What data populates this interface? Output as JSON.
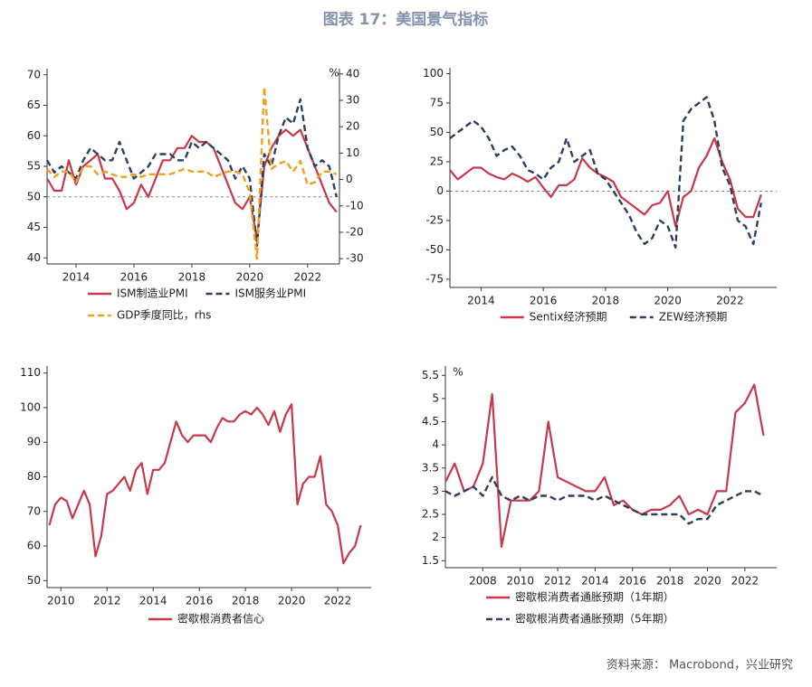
{
  "header": {
    "title": "图表 17：美国景气指标"
  },
  "source": "资料来源： Macrobond，兴业研究",
  "chart_data": [
    {
      "type": "line",
      "xlim": [
        2013,
        2023.1
      ],
      "xticks": [
        2014,
        2016,
        2018,
        2020,
        2022
      ],
      "ylim": [
        39,
        71
      ],
      "yticks": [
        40,
        45,
        50,
        55,
        60,
        65,
        70
      ],
      "y2lim": [
        -32,
        42
      ],
      "y2ticks": [
        -30,
        -20,
        -10,
        0,
        10,
        20,
        30,
        40
      ],
      "y2_unit": "%",
      "refline": 50,
      "x": [
        2013,
        2013.25,
        2013.5,
        2013.75,
        2014,
        2014.25,
        2014.5,
        2014.75,
        2015,
        2015.25,
        2015.5,
        2015.75,
        2016,
        2016.25,
        2016.5,
        2016.75,
        2017,
        2017.25,
        2017.5,
        2017.75,
        2018,
        2018.25,
        2018.5,
        2018.75,
        2019,
        2019.25,
        2019.5,
        2019.75,
        2020,
        2020.25,
        2020.5,
        2020.75,
        2021,
        2021.25,
        2021.5,
        2021.75,
        2022,
        2022.25,
        2022.5,
        2022.75,
        2023
      ],
      "series": [
        {
          "name": "ISM制造业PMI",
          "color": "#c8374a",
          "dash": false,
          "values": [
            53,
            51,
            51,
            56,
            52,
            55,
            56,
            57,
            53,
            53,
            51,
            48,
            49,
            52,
            50,
            53,
            56,
            56,
            58,
            58,
            60,
            59,
            59,
            58,
            55,
            52,
            49,
            48,
            50,
            43,
            55,
            58,
            60,
            61,
            60,
            61,
            58,
            55,
            52,
            49,
            47.5
          ]
        },
        {
          "name": "ISM服务业PMI",
          "color": "#2e3f5c",
          "dash": true,
          "values": [
            56,
            54,
            55,
            54,
            53,
            56,
            58,
            57,
            56,
            56,
            59,
            56,
            53,
            54,
            55,
            57,
            57,
            57,
            56,
            56,
            59,
            58,
            59,
            58,
            57,
            56,
            53,
            55,
            53,
            42,
            57,
            55,
            60,
            63,
            62,
            66,
            58,
            55,
            56,
            55,
            50
          ]
        },
        {
          "name": "GDP季度同比，rhs",
          "color": "#f0a020",
          "dash": true,
          "axis": "y2",
          "values": [
            4,
            1,
            3,
            3,
            -1,
            5,
            5,
            2,
            3,
            2,
            1,
            1,
            2,
            1,
            2,
            2,
            2,
            2,
            3,
            4,
            3,
            3,
            3,
            1,
            2,
            3,
            3,
            2,
            -5,
            -30,
            35,
            4,
            6,
            7,
            3,
            7,
            -2,
            -1,
            3,
            3,
            2
          ]
        }
      ]
    },
    {
      "type": "line",
      "xlim": [
        2013,
        2023.5
      ],
      "xticks": [
        2014,
        2016,
        2018,
        2020,
        2022
      ],
      "ylim": [
        -82,
        105
      ],
      "yticks": [
        -75,
        -50,
        -25,
        0,
        25,
        50,
        75,
        100
      ],
      "refline": 0,
      "x": [
        2013,
        2013.25,
        2013.5,
        2013.75,
        2014,
        2014.25,
        2014.5,
        2014.75,
        2015,
        2015.25,
        2015.5,
        2015.75,
        2016,
        2016.25,
        2016.5,
        2016.75,
        2017,
        2017.25,
        2017.5,
        2017.75,
        2018,
        2018.25,
        2018.5,
        2018.75,
        2019,
        2019.25,
        2019.5,
        2019.75,
        2020,
        2020.25,
        2020.5,
        2020.75,
        2021,
        2021.25,
        2021.5,
        2021.75,
        2022,
        2022.25,
        2022.5,
        2022.75,
        2023
      ],
      "series": [
        {
          "name": "Sentix经济预期",
          "color": "#c8374a",
          "dash": false,
          "values": [
            18,
            10,
            15,
            20,
            20,
            15,
            12,
            10,
            15,
            12,
            8,
            12,
            3,
            -5,
            5,
            5,
            10,
            28,
            20,
            15,
            12,
            8,
            -5,
            -10,
            -15,
            -20,
            -12,
            -10,
            0,
            -30,
            -5,
            0,
            20,
            30,
            45,
            25,
            10,
            -15,
            -22,
            -22,
            -3
          ]
        },
        {
          "name": "ZEW经济预期",
          "color": "#2e3f5c",
          "dash": true,
          "values": [
            45,
            50,
            55,
            60,
            55,
            45,
            30,
            35,
            38,
            30,
            18,
            15,
            10,
            20,
            25,
            45,
            25,
            30,
            35,
            15,
            10,
            0,
            -10,
            -20,
            -35,
            -45,
            -40,
            -25,
            -30,
            -48,
            60,
            70,
            75,
            80,
            60,
            20,
            5,
            -25,
            -30,
            -45,
            -10
          ]
        }
      ]
    },
    {
      "type": "line",
      "xlim": [
        2009.4,
        2023.45
      ],
      "xticks": [
        2010,
        2012,
        2014,
        2016,
        2018,
        2020,
        2022
      ],
      "ylim": [
        48,
        112
      ],
      "yticks": [
        50,
        60,
        70,
        80,
        90,
        100,
        110
      ],
      "x": [
        2009.5,
        2009.75,
        2010,
        2010.25,
        2010.5,
        2010.75,
        2011,
        2011.25,
        2011.5,
        2011.75,
        2012,
        2012.25,
        2012.5,
        2012.75,
        2013,
        2013.25,
        2013.5,
        2013.75,
        2014,
        2014.25,
        2014.5,
        2014.75,
        2015,
        2015.25,
        2015.5,
        2015.75,
        2016,
        2016.25,
        2016.5,
        2016.75,
        2017,
        2017.25,
        2017.5,
        2017.75,
        2018,
        2018.25,
        2018.5,
        2018.75,
        2019,
        2019.25,
        2019.5,
        2019.75,
        2020,
        2020.25,
        2020.5,
        2020.75,
        2021,
        2021.25,
        2021.5,
        2021.75,
        2022,
        2022.25,
        2022.5,
        2022.75,
        2023
      ],
      "series": [
        {
          "name": "密歇根消费者信心",
          "color": "#c8374a",
          "dash": false,
          "values": [
            66,
            72,
            74,
            73,
            68,
            72,
            76,
            72,
            57,
            63,
            75,
            76,
            78,
            80,
            76,
            82,
            84,
            75,
            82,
            82,
            84,
            90,
            96,
            92,
            90,
            92,
            92,
            92,
            90,
            94,
            97,
            96,
            96,
            98,
            99,
            98,
            100,
            98,
            95,
            99,
            93,
            98,
            101,
            72,
            78,
            80,
            80,
            86,
            72,
            70,
            66,
            55,
            58,
            60,
            66
          ]
        }
      ]
    },
    {
      "type": "line",
      "xlim": [
        2006,
        2023.7
      ],
      "xticks": [
        2008,
        2010,
        2012,
        2014,
        2016,
        2018,
        2020,
        2022
      ],
      "ylim": [
        1.35,
        5.7
      ],
      "yticks": [
        1.5,
        2.0,
        2.5,
        3.0,
        3.5,
        4.0,
        4.5,
        5.0,
        5.5
      ],
      "y_unit": "%",
      "x": [
        2006,
        2006.5,
        2007,
        2007.5,
        2008,
        2008.5,
        2009,
        2009.5,
        2010,
        2010.5,
        2011,
        2011.5,
        2012,
        2012.5,
        2013,
        2013.5,
        2014,
        2014.5,
        2015,
        2015.5,
        2016,
        2016.5,
        2017,
        2017.5,
        2018,
        2018.5,
        2019,
        2019.5,
        2020,
        2020.5,
        2021,
        2021.5,
        2022,
        2022.5,
        2023
      ],
      "series": [
        {
          "name": "密歇根消费者通胀预期（1年期）",
          "color": "#c8374a",
          "dash": false,
          "values": [
            3.2,
            3.6,
            3.0,
            3.1,
            3.6,
            5.1,
            1.8,
            2.8,
            2.8,
            2.8,
            3.0,
            4.5,
            3.3,
            3.2,
            3.1,
            3.0,
            3.0,
            3.3,
            2.7,
            2.8,
            2.6,
            2.5,
            2.6,
            2.6,
            2.7,
            2.9,
            2.5,
            2.6,
            2.5,
            3.0,
            3.0,
            4.7,
            4.9,
            5.3,
            4.2
          ]
        },
        {
          "name": "密歇根消费者通胀预期（5年期）",
          "color": "#2e3f5c",
          "dash": true,
          "values": [
            3.0,
            2.9,
            3.0,
            3.1,
            2.9,
            3.3,
            2.9,
            2.8,
            2.9,
            2.8,
            2.9,
            2.9,
            2.8,
            2.9,
            2.9,
            2.9,
            2.8,
            2.9,
            2.8,
            2.7,
            2.6,
            2.5,
            2.5,
            2.5,
            2.5,
            2.5,
            2.3,
            2.4,
            2.4,
            2.7,
            2.8,
            2.9,
            3.0,
            3.0,
            2.9
          ]
        }
      ]
    }
  ]
}
